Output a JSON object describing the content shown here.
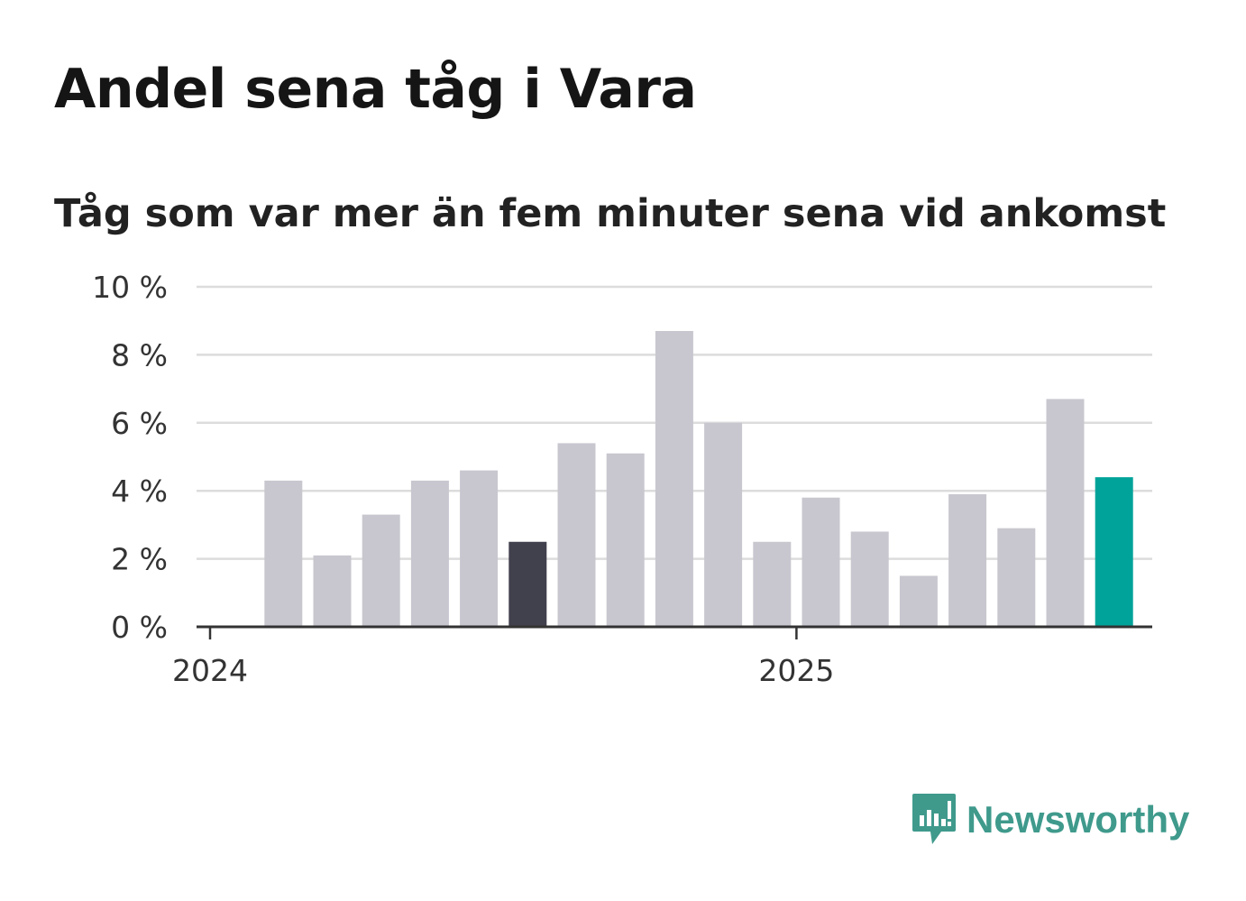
{
  "header": {
    "title": "Andel sena tåg i Vara",
    "subtitle": "Tåg som var mer än fem minuter sena vid ankomst"
  },
  "brand": {
    "name": "Newsworthy",
    "icon": "newsworthy-logo-icon",
    "color": "#3f9a8c"
  },
  "chart_data": {
    "type": "bar",
    "title": "Andel sena tåg i Vara",
    "subtitle": "Tåg som var mer än fem minuter sena vid ankomst",
    "xlabel": "",
    "ylabel": "",
    "ylim": [
      0,
      10
    ],
    "y_ticks": [
      0,
      2,
      4,
      6,
      8,
      10
    ],
    "y_tick_labels": [
      "0 %",
      "2 %",
      "4 %",
      "6 %",
      "8 %",
      "10 %"
    ],
    "x_ticks": [
      {
        "label": "2024",
        "at_month": "2024-01"
      },
      {
        "label": "2025",
        "at_month": "2025-01"
      }
    ],
    "grid": true,
    "categories": [
      "2024-02",
      "2024-03",
      "2024-04",
      "2024-05",
      "2024-06",
      "2024-07",
      "2024-08",
      "2024-09",
      "2024-10",
      "2024-11",
      "2024-12",
      "2025-01",
      "2025-02",
      "2025-03",
      "2025-04",
      "2025-05",
      "2025-06",
      "2025-07"
    ],
    "values": [
      4.3,
      2.1,
      3.3,
      4.3,
      4.6,
      2.5,
      5.4,
      5.1,
      8.7,
      6.0,
      2.5,
      3.8,
      2.8,
      1.5,
      3.9,
      2.9,
      6.7,
      4.4
    ],
    "colors": {
      "default": "#c8c7cf",
      "highlight_previous_year": "#41404d",
      "highlight_latest": "#00a399"
    },
    "highlighted": {
      "2024-07": "highlight_previous_year",
      "2025-07": "highlight_latest"
    }
  }
}
